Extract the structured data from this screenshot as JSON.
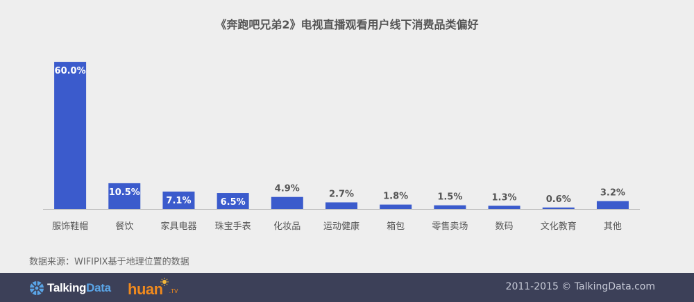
{
  "chart_data": {
    "type": "bar",
    "title": "《奔跑吧兄弟2》电视直播观看用户线下消费品类偏好",
    "categories": [
      "服饰鞋帽",
      "餐饮",
      "家具电器",
      "珠宝手表",
      "化妆品",
      "运动健康",
      "箱包",
      "零售卖场",
      "数码",
      "文化教育",
      "其他"
    ],
    "values": [
      60.0,
      10.5,
      7.1,
      6.5,
      4.9,
      2.7,
      1.8,
      1.5,
      1.3,
      0.6,
      3.2
    ],
    "value_labels": [
      "60.0%",
      "10.5%",
      "7.1%",
      "6.5%",
      "4.9%",
      "2.7%",
      "1.8%",
      "1.5%",
      "1.3%",
      "0.6%",
      "3.2%"
    ],
    "ylim": [
      0,
      62
    ],
    "grid": false,
    "bar_color": "#3b5bcc"
  },
  "source_text": "数据来源：WIFIPIX基于地理位置的数据",
  "footer": {
    "logo_brand_left": "Talking",
    "logo_brand_right": "Data",
    "logo_partner": "huan",
    "logo_partner_suffix": ".TV",
    "copyright": "2011-2015 © TalkingData.com"
  }
}
